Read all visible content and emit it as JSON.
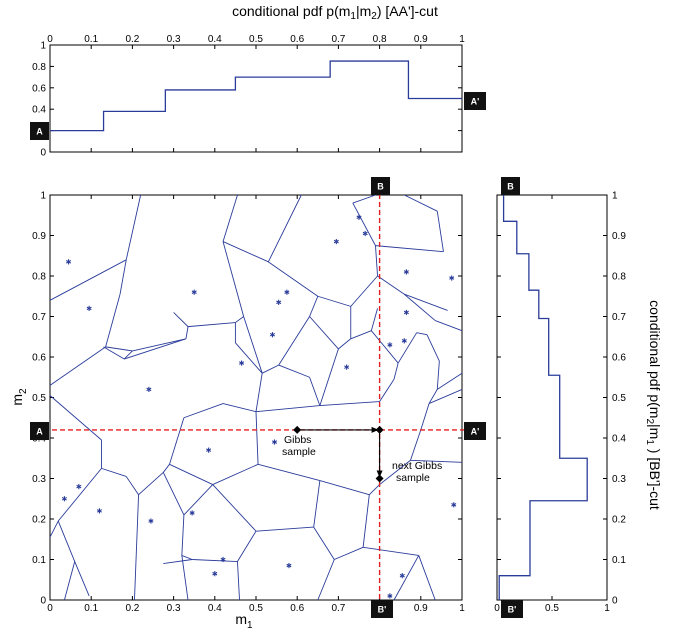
{
  "colors": {
    "accent": "#2a3c9a",
    "cut": "#e02020",
    "marker_bg": "#111111"
  },
  "icons": {
    "arrow": "arrow-icon",
    "sample_point": "diamond-icon"
  },
  "top_plot": {
    "title_prefix": "conditional pdf p(m",
    "title_sub1": "1",
    "title_mid": "|m",
    "title_sub2": "2",
    "title_suffix": ")  [AA']-cut"
  },
  "right_plot": {
    "title_prefix": "conditional pdf p(m",
    "title_sub1": "2",
    "title_mid": "|m",
    "title_sub2": "1",
    "title_suffix": " )  [BB']-cut"
  },
  "main_plot": {
    "xlabel_main": "m",
    "xlabel_sub": "1",
    "ylabel_main": "m",
    "ylabel_sub": "2"
  },
  "markers": {
    "A": "A",
    "A_prime": "A'",
    "B": "B",
    "B_prime": "B'"
  },
  "annotations": {
    "gibbs_line1": "Gibbs",
    "gibbs_line2": "sample",
    "next_line1": "next Gibbs",
    "next_line2": "sample"
  },
  "chart_data": [
    {
      "type": "line",
      "name": "top-conditional-pdf",
      "xlim": [
        0,
        1
      ],
      "ylim": [
        0,
        1
      ],
      "xticks": [
        "0",
        "0.1",
        "0.2",
        "0.3",
        "0.4",
        "0.5",
        "0.6",
        "0.7",
        "0.8",
        "0.9",
        "1"
      ],
      "yticks": [
        "0",
        "0.2",
        "0.4",
        "0.6",
        "0.8",
        "1"
      ],
      "steps_x": [
        0,
        0.13,
        0.28,
        0.45,
        0.68,
        0.87,
        1
      ],
      "steps_y": [
        0.2,
        0.38,
        0.58,
        0.7,
        0.85,
        0.5
      ]
    },
    {
      "type": "scatter",
      "name": "voronoi-cells",
      "xlim": [
        0,
        1
      ],
      "ylim": [
        0,
        1
      ],
      "xticks": [
        "0",
        "0.1",
        "0.2",
        "0.3",
        "0.4",
        "0.5",
        "0.6",
        "0.7",
        "0.8",
        "0.9",
        "1"
      ],
      "yticks": [
        "0",
        "0.1",
        "0.2",
        "0.3",
        "0.4",
        "0.5",
        "0.6",
        "0.7",
        "0.8",
        "0.9",
        "1"
      ],
      "points": [
        [
          0.045,
          0.835
        ],
        [
          0.095,
          0.72
        ],
        [
          0.035,
          0.25
        ],
        [
          0.07,
          0.28
        ],
        [
          0.12,
          0.22
        ],
        [
          0.24,
          0.52
        ],
        [
          0.245,
          0.195
        ],
        [
          0.35,
          0.76
        ],
        [
          0.345,
          0.215
        ],
        [
          0.385,
          0.37
        ],
        [
          0.4,
          0.065
        ],
        [
          0.42,
          0.1
        ],
        [
          0.465,
          0.585
        ],
        [
          0.54,
          0.655
        ],
        [
          0.555,
          0.735
        ],
        [
          0.575,
          0.76
        ],
        [
          0.545,
          0.39
        ],
        [
          0.58,
          0.085
        ],
        [
          0.695,
          0.885
        ],
        [
          0.765,
          0.905
        ],
        [
          0.75,
          0.945
        ],
        [
          0.72,
          0.575
        ],
        [
          0.825,
          0.63
        ],
        [
          0.86,
          0.64
        ],
        [
          0.865,
          0.71
        ],
        [
          0.865,
          0.81
        ],
        [
          0.975,
          0.795
        ],
        [
          0.98,
          0.235
        ],
        [
          0.825,
          0.01
        ],
        [
          0.855,
          0.06
        ]
      ],
      "cut_A_y": 0.42,
      "cut_B_x": 0.8,
      "gibbs_sample": [
        0.6,
        0.42
      ],
      "intermediate": [
        0.8,
        0.42
      ],
      "next_gibbs_sample": [
        0.8,
        0.3
      ],
      "edges": [
        [
          [
            0,
            0.505
          ],
          [
            0.125,
            0.395
          ]
        ],
        [
          [
            0.125,
            0.395
          ],
          [
            0.125,
            0.325
          ]
        ],
        [
          [
            0.125,
            0.325
          ],
          [
            0.02,
            0.195
          ]
        ],
        [
          [
            0.02,
            0.195
          ],
          [
            0,
            0.155
          ]
        ],
        [
          [
            0.02,
            0.195
          ],
          [
            0.06,
            0.095
          ]
        ],
        [
          [
            0.06,
            0.095
          ],
          [
            0.035,
            0
          ]
        ],
        [
          [
            0.06,
            0.095
          ],
          [
            0.095,
            0.01
          ]
        ],
        [
          [
            0.125,
            0.325
          ],
          [
            0.185,
            0.305
          ]
        ],
        [
          [
            0.185,
            0.305
          ],
          [
            0.215,
            0.26
          ]
        ],
        [
          [
            0.215,
            0.26
          ],
          [
            0.205,
            0
          ]
        ],
        [
          [
            0.215,
            0.26
          ],
          [
            0.275,
            0.315
          ]
        ],
        [
          [
            0.275,
            0.315
          ],
          [
            0.29,
            0.335
          ]
        ],
        [
          [
            0.29,
            0.335
          ],
          [
            0.325,
            0.45
          ]
        ],
        [
          [
            0.325,
            0.45
          ],
          [
            0.42,
            0.485
          ]
        ],
        [
          [
            0.42,
            0.485
          ],
          [
            0.5,
            0.465
          ]
        ],
        [
          [
            0.5,
            0.465
          ],
          [
            0.505,
            0.335
          ]
        ],
        [
          [
            0.505,
            0.335
          ],
          [
            0.395,
            0.285
          ]
        ],
        [
          [
            0.395,
            0.285
          ],
          [
            0.29,
            0.335
          ]
        ],
        [
          [
            0.395,
            0.285
          ],
          [
            0.325,
            0.21
          ]
        ],
        [
          [
            0.325,
            0.21
          ],
          [
            0.275,
            0.315
          ]
        ],
        [
          [
            0.325,
            0.21
          ],
          [
            0.32,
            0.11
          ]
        ],
        [
          [
            0.32,
            0.11
          ],
          [
            0.345,
            0.1
          ]
        ],
        [
          [
            0.345,
            0.1
          ],
          [
            0.275,
            0.09
          ]
        ],
        [
          [
            0.32,
            0.11
          ],
          [
            0.335,
            0
          ]
        ],
        [
          [
            0.345,
            0.1
          ],
          [
            0.455,
            0.095
          ]
        ],
        [
          [
            0.455,
            0.095
          ],
          [
            0.5,
            0.17
          ]
        ],
        [
          [
            0.5,
            0.17
          ],
          [
            0.395,
            0.285
          ]
        ],
        [
          [
            0.455,
            0.095
          ],
          [
            0.46,
            0
          ]
        ],
        [
          [
            0.5,
            0.17
          ],
          [
            0.64,
            0.18
          ]
        ],
        [
          [
            0.64,
            0.18
          ],
          [
            0.655,
            0.295
          ]
        ],
        [
          [
            0.655,
            0.295
          ],
          [
            0.505,
            0.335
          ]
        ],
        [
          [
            0.64,
            0.18
          ],
          [
            0.69,
            0.1
          ]
        ],
        [
          [
            0.69,
            0.1
          ],
          [
            0.65,
            0
          ]
        ],
        [
          [
            0.69,
            0.1
          ],
          [
            0.76,
            0.13
          ]
        ],
        [
          [
            0.76,
            0.13
          ],
          [
            0.775,
            0.26
          ]
        ],
        [
          [
            0.775,
            0.26
          ],
          [
            0.655,
            0.295
          ]
        ],
        [
          [
            0.76,
            0.13
          ],
          [
            0.895,
            0.11
          ]
        ],
        [
          [
            0.895,
            0.11
          ],
          [
            0.835,
            0
          ]
        ],
        [
          [
            0.895,
            0.11
          ],
          [
            0.935,
            0
          ]
        ],
        [
          [
            0.775,
            0.26
          ],
          [
            0.8,
            0.285
          ]
        ],
        [
          [
            0.8,
            0.285
          ],
          [
            0.875,
            0.345
          ]
        ],
        [
          [
            0.875,
            0.345
          ],
          [
            1,
            0.34
          ]
        ],
        [
          [
            0.875,
            0.345
          ],
          [
            0.9,
            0.42
          ]
        ],
        [
          [
            0.9,
            0.42
          ],
          [
            0.92,
            0.485
          ]
        ],
        [
          [
            0.92,
            0.485
          ],
          [
            1,
            0.52
          ]
        ],
        [
          [
            0.92,
            0.485
          ],
          [
            0.94,
            0.52
          ]
        ],
        [
          [
            0.94,
            0.52
          ],
          [
            1,
            0.56
          ]
        ],
        [
          [
            0.94,
            0.52
          ],
          [
            0.945,
            0.59
          ]
        ],
        [
          [
            0.945,
            0.59
          ],
          [
            0.915,
            0.655
          ]
        ],
        [
          [
            0.915,
            0.655
          ],
          [
            0.89,
            0.66
          ]
        ],
        [
          [
            0.89,
            0.66
          ],
          [
            0.845,
            0.585
          ]
        ],
        [
          [
            0.845,
            0.585
          ],
          [
            0.835,
            0.545
          ]
        ],
        [
          [
            0.835,
            0.545
          ],
          [
            0.8,
            0.49
          ]
        ],
        [
          [
            0.8,
            0.49
          ],
          [
            0.655,
            0.48
          ]
        ],
        [
          [
            0.655,
            0.48
          ],
          [
            0.5,
            0.465
          ]
        ],
        [
          [
            0.655,
            0.48
          ],
          [
            0.63,
            0.55
          ]
        ],
        [
          [
            0.63,
            0.55
          ],
          [
            0.555,
            0.58
          ]
        ],
        [
          [
            0.555,
            0.58
          ],
          [
            0.515,
            0.56
          ]
        ],
        [
          [
            0.515,
            0.56
          ],
          [
            0.5,
            0.465
          ]
        ],
        [
          [
            0.515,
            0.56
          ],
          [
            0.45,
            0.635
          ]
        ],
        [
          [
            0.45,
            0.635
          ],
          [
            0.45,
            0.685
          ]
        ],
        [
          [
            0.45,
            0.685
          ],
          [
            0.335,
            0.675
          ]
        ],
        [
          [
            0.335,
            0.675
          ],
          [
            0.33,
            0.645
          ]
        ],
        [
          [
            0.33,
            0.645
          ],
          [
            0.2,
            0.615
          ]
        ],
        [
          [
            0.2,
            0.615
          ],
          [
            0.135,
            0.625
          ]
        ],
        [
          [
            0.135,
            0.625
          ],
          [
            0,
            0.53
          ]
        ],
        [
          [
            0.135,
            0.625
          ],
          [
            0.17,
            0.755
          ]
        ],
        [
          [
            0.17,
            0.755
          ],
          [
            0.185,
            0.84
          ]
        ],
        [
          [
            0.185,
            0.84
          ],
          [
            0,
            0.74
          ]
        ],
        [
          [
            0.185,
            0.84
          ],
          [
            0.22,
            1
          ]
        ],
        [
          [
            0.2,
            0.615
          ],
          [
            0.18,
            0.595
          ]
        ],
        [
          [
            0.18,
            0.595
          ],
          [
            0.13,
            0.625
          ]
        ],
        [
          [
            0.33,
            0.645
          ],
          [
            0.18,
            0.595
          ]
        ],
        [
          [
            0.335,
            0.675
          ],
          [
            0.3,
            0.71
          ]
        ],
        [
          [
            0.45,
            0.685
          ],
          [
            0.47,
            0.7
          ]
        ],
        [
          [
            0.47,
            0.7
          ],
          [
            0.42,
            0.885
          ]
        ],
        [
          [
            0.42,
            0.885
          ],
          [
            0.455,
            1
          ]
        ],
        [
          [
            0.42,
            0.885
          ],
          [
            0.53,
            0.835
          ]
        ],
        [
          [
            0.53,
            0.835
          ],
          [
            0.65,
            0.75
          ]
        ],
        [
          [
            0.65,
            0.75
          ],
          [
            0.63,
            0.7
          ]
        ],
        [
          [
            0.63,
            0.7
          ],
          [
            0.555,
            0.58
          ]
        ],
        [
          [
            0.53,
            0.835
          ],
          [
            0.61,
            1
          ]
        ],
        [
          [
            0.65,
            0.75
          ],
          [
            0.73,
            0.725
          ]
        ],
        [
          [
            0.73,
            0.725
          ],
          [
            0.795,
            0.8
          ]
        ],
        [
          [
            0.795,
            0.8
          ],
          [
            0.79,
            0.875
          ]
        ],
        [
          [
            0.79,
            0.875
          ],
          [
            0.735,
            0.98
          ]
        ],
        [
          [
            0.735,
            0.98
          ],
          [
            0.79,
            1
          ]
        ],
        [
          [
            0.795,
            0.8
          ],
          [
            0.86,
            0.755
          ]
        ],
        [
          [
            0.86,
            0.755
          ],
          [
            0.935,
            0.69
          ]
        ],
        [
          [
            0.935,
            0.69
          ],
          [
            1,
            0.665
          ]
        ],
        [
          [
            0.86,
            0.755
          ],
          [
            0.965,
            0.715
          ]
        ],
        [
          [
            0.79,
            0.875
          ],
          [
            0.955,
            0.86
          ]
        ],
        [
          [
            0.955,
            0.86
          ],
          [
            0.94,
            0.96
          ]
        ],
        [
          [
            0.94,
            0.96
          ],
          [
            0.86,
            1
          ]
        ],
        [
          [
            0.73,
            0.725
          ],
          [
            0.73,
            0.645
          ]
        ],
        [
          [
            0.73,
            0.645
          ],
          [
            0.78,
            0.665
          ]
        ],
        [
          [
            0.78,
            0.665
          ],
          [
            0.795,
            0.72
          ]
        ],
        [
          [
            0.73,
            0.645
          ],
          [
            0.7,
            0.62
          ]
        ],
        [
          [
            0.7,
            0.62
          ],
          [
            0.63,
            0.7
          ]
        ],
        [
          [
            0.7,
            0.62
          ],
          [
            0.655,
            0.48
          ]
        ],
        [
          [
            0.78,
            0.665
          ],
          [
            0.845,
            0.585
          ]
        ],
        [
          [
            0.47,
            0.7
          ],
          [
            0.515,
            0.56
          ]
        ]
      ]
    },
    {
      "type": "line",
      "name": "right-conditional-pdf",
      "xlim": [
        0,
        1
      ],
      "ylim": [
        0,
        1
      ],
      "xticks": [
        "0",
        "0.5",
        "1"
      ],
      "yticks": [
        "0",
        "0.1",
        "0.2",
        "0.3",
        "0.4",
        "0.5",
        "0.6",
        "0.7",
        "0.8",
        "0.9",
        "1"
      ],
      "steps_y": [
        0,
        0.06,
        0.245,
        0.35,
        0.555,
        0.695,
        0.765,
        0.855,
        0.935,
        1
      ],
      "steps_x": [
        0.02,
        0.3,
        0.82,
        0.57,
        0.47,
        0.38,
        0.29,
        0.18,
        0.06
      ]
    }
  ]
}
